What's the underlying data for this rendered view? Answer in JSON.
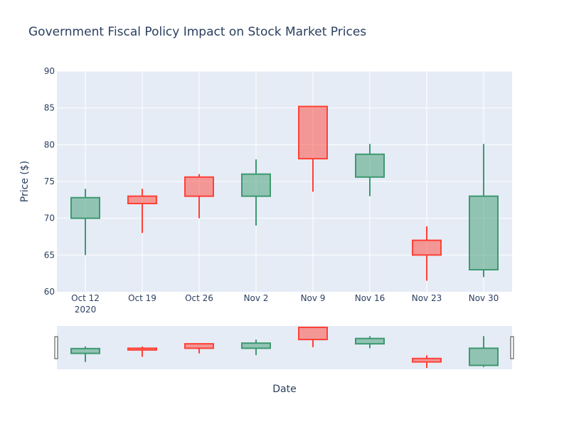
{
  "chart_data": {
    "type": "candlestick",
    "title": "Government Fiscal Policy Impact on Stock Market Prices",
    "xlabel": "Date",
    "ylabel": "Price ($)",
    "ylim": [
      60,
      90
    ],
    "yticks": [
      "60",
      "65",
      "70",
      "75",
      "80",
      "85",
      "90"
    ],
    "categories": [
      "Oct 12",
      "Oct 19",
      "Oct 26",
      "Nov 2",
      "Nov 9",
      "Nov 16",
      "Nov 23",
      "Nov 30"
    ],
    "year_label": "2020",
    "grid": true,
    "rangeslider": true,
    "increasing_color": "#3d9970",
    "decreasing_color": "#ff4136",
    "candles": [
      {
        "date": "Oct 12",
        "open": 70.0,
        "high": 74.0,
        "low": 65.0,
        "close": 72.8
      },
      {
        "date": "Oct 19",
        "open": 73.0,
        "high": 74.0,
        "low": 68.0,
        "close": 72.0
      },
      {
        "date": "Oct 26",
        "open": 75.6,
        "high": 76.0,
        "low": 70.0,
        "close": 73.0
      },
      {
        "date": "Nov 2",
        "open": 73.0,
        "high": 78.0,
        "low": 69.0,
        "close": 76.0
      },
      {
        "date": "Nov 9",
        "open": 85.2,
        "high": 85.2,
        "low": 73.6,
        "close": 78.1
      },
      {
        "date": "Nov 16",
        "open": 75.6,
        "high": 80.1,
        "low": 73.0,
        "close": 78.7
      },
      {
        "date": "Nov 23",
        "open": 67.0,
        "high": 68.9,
        "low": 61.5,
        "close": 65.0
      },
      {
        "date": "Nov 30",
        "open": 63.0,
        "high": 80.1,
        "low": 62.0,
        "close": 73.0
      }
    ]
  }
}
